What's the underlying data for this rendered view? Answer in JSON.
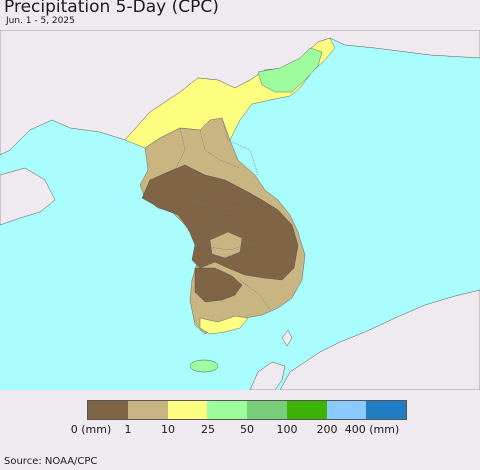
{
  "title": "Precipitation 5-Day (CPC)",
  "subtitle": "Jun. 1 - 5, 2025",
  "legend": {
    "colors": [
      "#7f6446",
      "#c8b582",
      "#feff80",
      "#9efe9e",
      "#78cd78",
      "#3cb204",
      "#8acbff",
      "#207ec4"
    ],
    "labels": [
      "0 (mm)",
      "1",
      "10",
      "25",
      "50",
      "100",
      "200",
      "400 (mm)"
    ]
  },
  "source": "Source: NOAA/CPC",
  "colors": {
    "sea": "#a9fdfd",
    "land": "#efeaef",
    "border": "#6f6f6f"
  }
}
